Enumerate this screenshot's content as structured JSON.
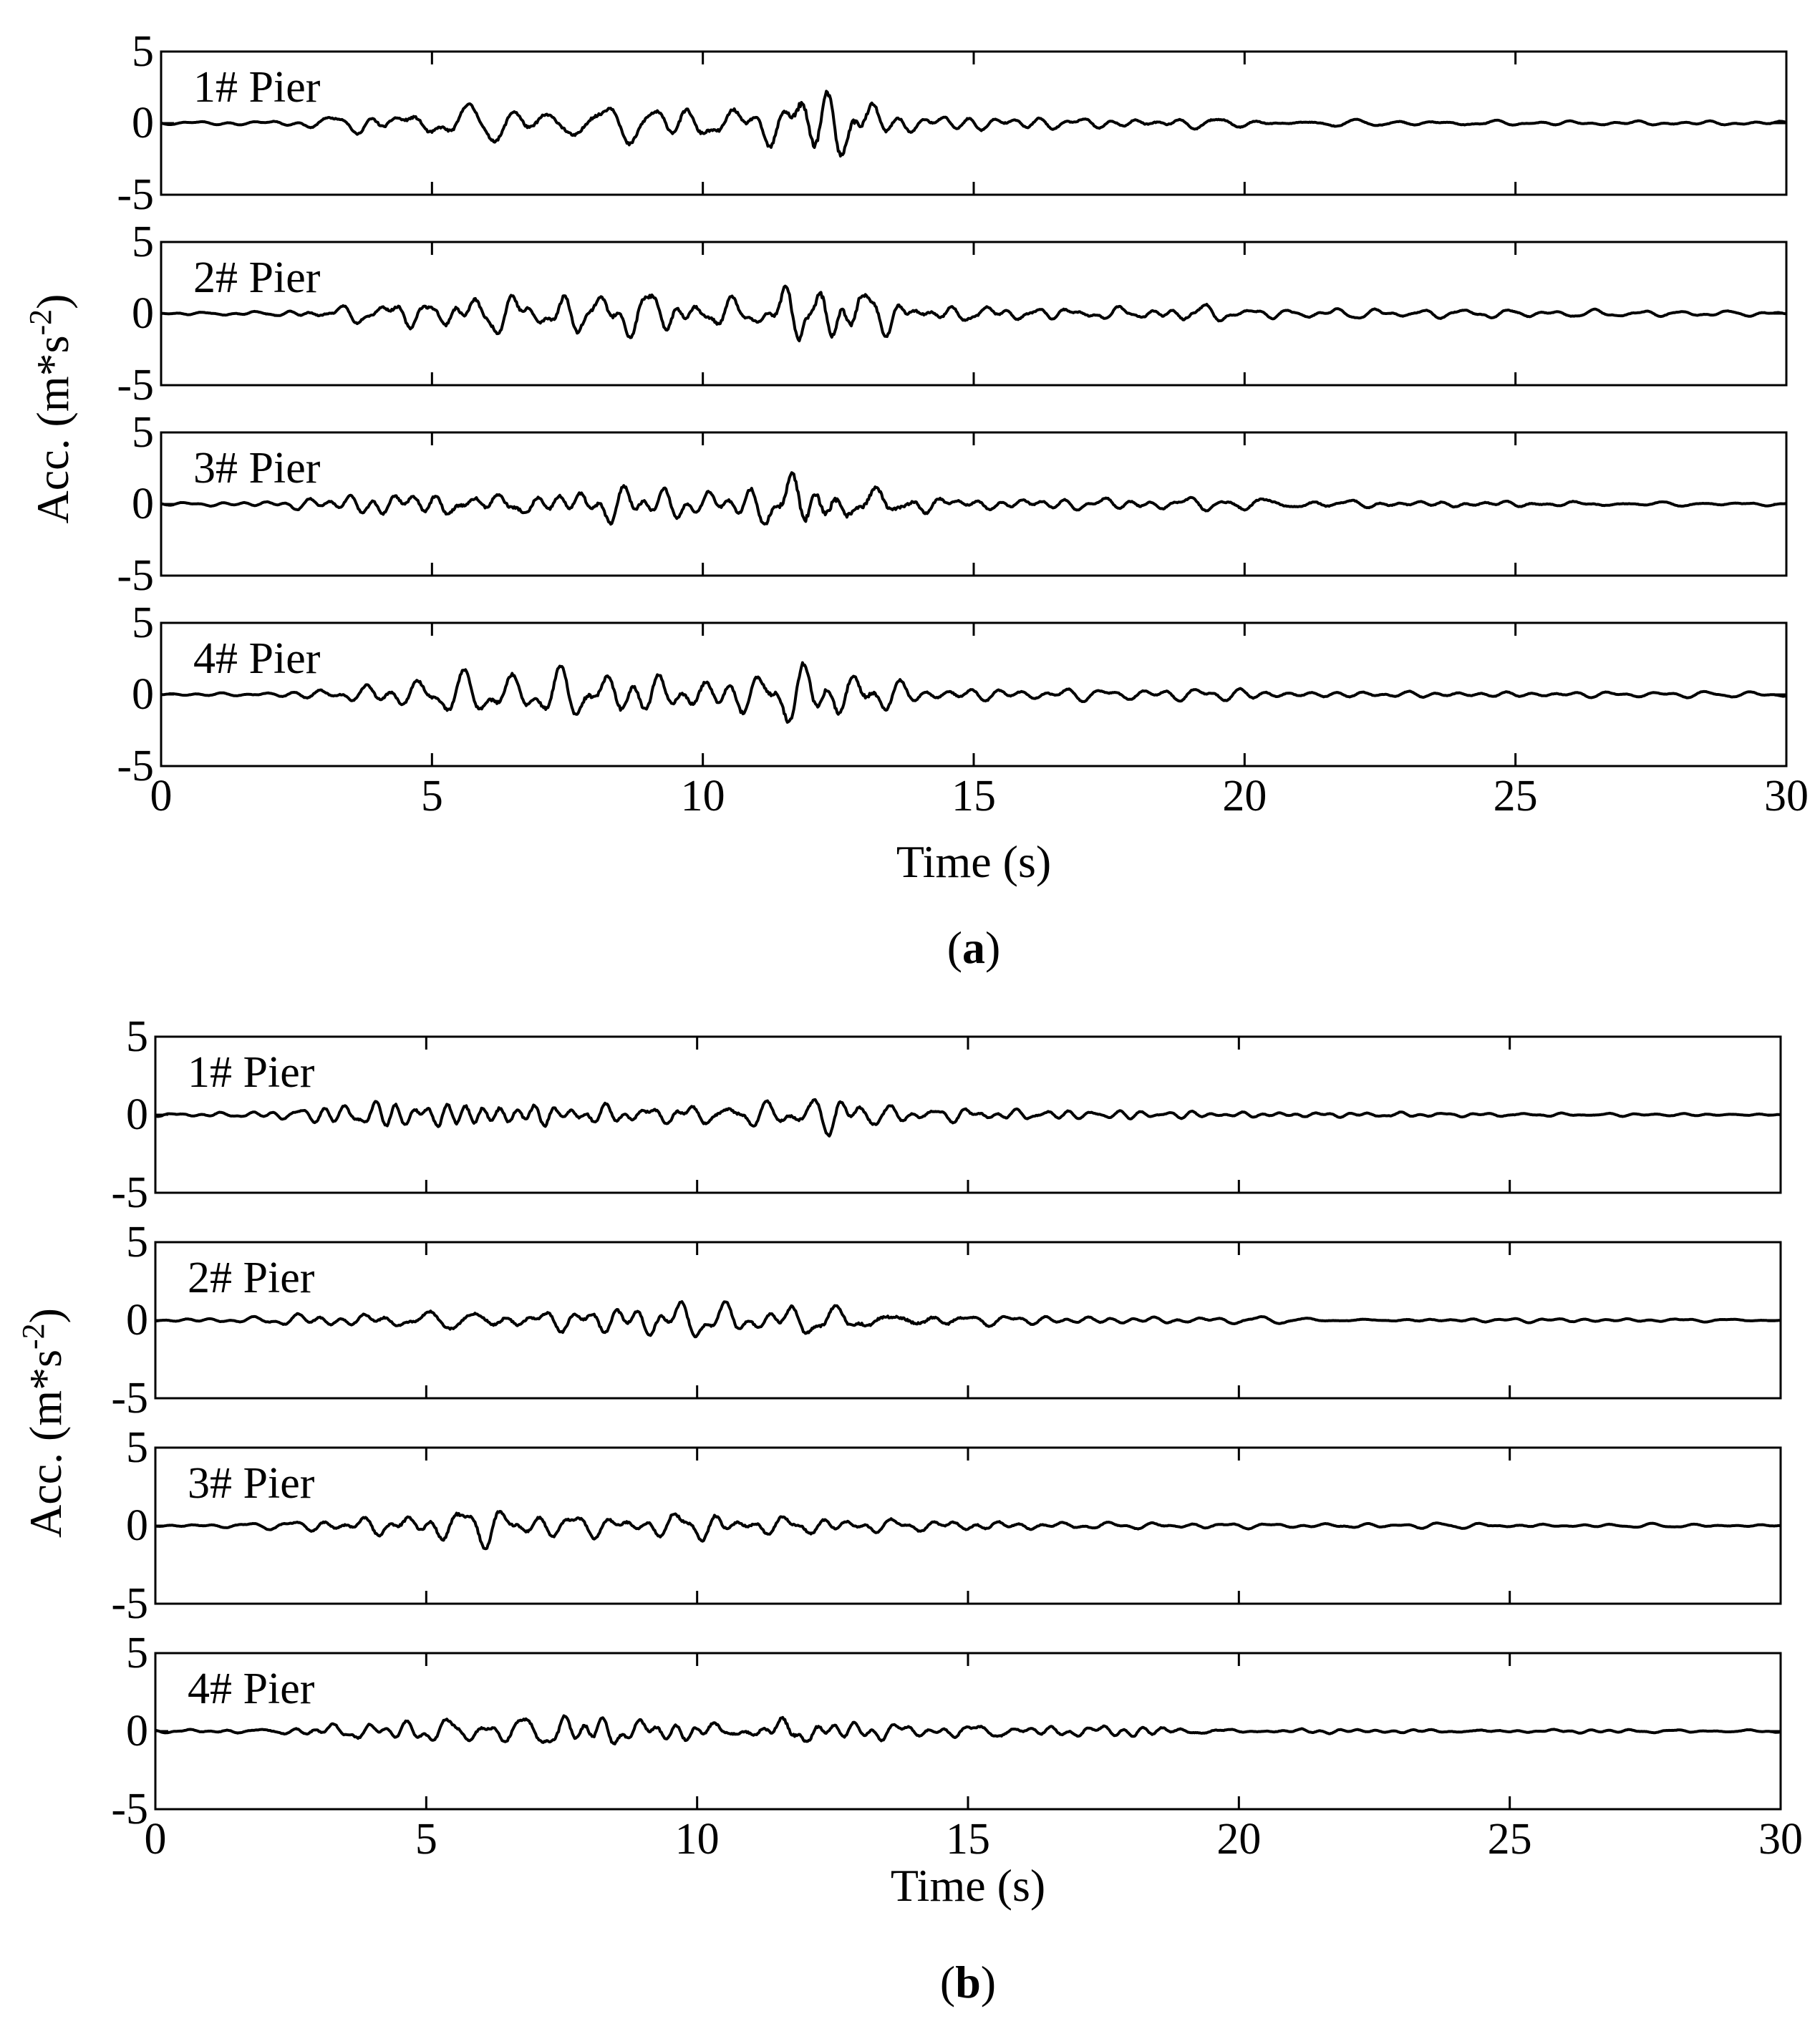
{
  "figure_captions": [
    {
      "open": "(",
      "letter": "a",
      "close": ")"
    },
    {
      "open": "(",
      "letter": "b",
      "close": ")"
    }
  ],
  "line_color": "#000000",
  "chart_data": [
    {
      "type": "line",
      "id": "a",
      "xlabel": "Time (s)",
      "ylabel": "Acc. (m*s",
      "ylabel_sup": "-2",
      "ylabel_close": ")",
      "xlim": [
        0,
        30
      ],
      "ylim": [
        -5,
        5
      ],
      "xticks": [
        0,
        5,
        10,
        15,
        20,
        25,
        30
      ],
      "yticks": [
        5,
        0,
        -5
      ],
      "panels": [
        {
          "label": "1# Pier",
          "envelope": [
            [
              0,
              0.1
            ],
            [
              2,
              0.2
            ],
            [
              3,
              0.4
            ],
            [
              4,
              1.0
            ],
            [
              6,
              1.4
            ],
            [
              8,
              1.5
            ],
            [
              9,
              1.6
            ],
            [
              10,
              1.4
            ],
            [
              11,
              1.3
            ],
            [
              11.8,
              3.2
            ],
            [
              12.3,
              3.2
            ],
            [
              12.8,
              2.8
            ],
            [
              13.5,
              0.9
            ],
            [
              15,
              0.7
            ],
            [
              17,
              0.5
            ],
            [
              18,
              0.6
            ],
            [
              20,
              0.4
            ],
            [
              22,
              0.3
            ],
            [
              25,
              0.2
            ],
            [
              30,
              0.15
            ]
          ],
          "seed": 11
        },
        {
          "label": "2# Pier",
          "envelope": [
            [
              0,
              0.1
            ],
            [
              2,
              0.2
            ],
            [
              3,
              0.5
            ],
            [
              4,
              0.9
            ],
            [
              5,
              1.3
            ],
            [
              6,
              1.4
            ],
            [
              8,
              1.7
            ],
            [
              9,
              1.8
            ],
            [
              10,
              1.3
            ],
            [
              11,
              1.0
            ],
            [
              11.8,
              3.0
            ],
            [
              12.5,
              2.6
            ],
            [
              13,
              2.2
            ],
            [
              14,
              0.8
            ],
            [
              16,
              0.6
            ],
            [
              18,
              0.5
            ],
            [
              19,
              0.8
            ],
            [
              20,
              0.4
            ],
            [
              25,
              0.25
            ],
            [
              30,
              0.15
            ]
          ],
          "seed": 23
        },
        {
          "label": "3# Pier",
          "envelope": [
            [
              0,
              0.1
            ],
            [
              2,
              0.2
            ],
            [
              3,
              0.5
            ],
            [
              4,
              1.1
            ],
            [
              5,
              1.4
            ],
            [
              6,
              1.2
            ],
            [
              8,
              1.5
            ],
            [
              9,
              1.4
            ],
            [
              10,
              1.0
            ],
            [
              11,
              1.4
            ],
            [
              11.8,
              3.0
            ],
            [
              12.5,
              2.6
            ],
            [
              13,
              1.9
            ],
            [
              14,
              1.3
            ],
            [
              15,
              0.6
            ],
            [
              17,
              0.5
            ],
            [
              19,
              0.6
            ],
            [
              20,
              0.7
            ],
            [
              22,
              0.4
            ],
            [
              25,
              0.3
            ],
            [
              30,
              0.15
            ]
          ],
          "seed": 37
        },
        {
          "label": "4# Pier",
          "envelope": [
            [
              0,
              0.1
            ],
            [
              2,
              0.2
            ],
            [
              3,
              0.5
            ],
            [
              4,
              0.9
            ],
            [
              6,
              1.5
            ],
            [
              8,
              1.8
            ],
            [
              9,
              1.9
            ],
            [
              10,
              1.5
            ],
            [
              11,
              1.6
            ],
            [
              11.6,
              2.4
            ],
            [
              12.4,
              2.2
            ],
            [
              13,
              1.8
            ],
            [
              14,
              0.7
            ],
            [
              16,
              0.5
            ],
            [
              18,
              0.4
            ],
            [
              19.5,
              0.6
            ],
            [
              21,
              0.3
            ],
            [
              25,
              0.25
            ],
            [
              30,
              0.15
            ]
          ],
          "seed": 53
        }
      ]
    },
    {
      "type": "line",
      "id": "b",
      "xlabel": "Time (s)",
      "ylabel": "Acc. (m*s",
      "ylabel_sup": "-2",
      "ylabel_close": ")",
      "xlim": [
        0,
        30
      ],
      "ylim": [
        -5,
        5
      ],
      "xticks": [
        0,
        5,
        10,
        15,
        20,
        25,
        30
      ],
      "yticks": [
        5,
        0,
        -5
      ],
      "panels": [
        {
          "label": "1# Pier",
          "envelope": [
            [
              0,
              0.1
            ],
            [
              2,
              0.2
            ],
            [
              3,
              0.5
            ],
            [
              4,
              0.9
            ],
            [
              6,
              1.3
            ],
            [
              8,
              1.0
            ],
            [
              9,
              0.9
            ],
            [
              10,
              1.0
            ],
            [
              11,
              1.0
            ],
            [
              12,
              1.1
            ],
            [
              12.8,
              1.5
            ],
            [
              13.5,
              0.6
            ],
            [
              15,
              0.6
            ],
            [
              17,
              0.3
            ],
            [
              20,
              0.2
            ],
            [
              25,
              0.15
            ],
            [
              30,
              0.1
            ]
          ],
          "seed": 71
        },
        {
          "label": "2# Pier",
          "envelope": [
            [
              0,
              0.1
            ],
            [
              2,
              0.2
            ],
            [
              3,
              0.6
            ],
            [
              4,
              0.7
            ],
            [
              6,
              0.8
            ],
            [
              8,
              1.1
            ],
            [
              9,
              1.2
            ],
            [
              10,
              1.0
            ],
            [
              11,
              0.9
            ],
            [
              12,
              1.2
            ],
            [
              14,
              1.1
            ],
            [
              15,
              0.5
            ],
            [
              17,
              0.3
            ],
            [
              20,
              0.2
            ],
            [
              25,
              0.15
            ],
            [
              30,
              0.1
            ]
          ],
          "seed": 83
        },
        {
          "label": "3# Pier",
          "envelope": [
            [
              0,
              0.1
            ],
            [
              2,
              0.2
            ],
            [
              3,
              0.5
            ],
            [
              4.5,
              1.0
            ],
            [
              6.2,
              1.4
            ],
            [
              7,
              0.9
            ],
            [
              9,
              0.8
            ],
            [
              10,
              1.3
            ],
            [
              11,
              0.7
            ],
            [
              12,
              0.8
            ],
            [
              14,
              0.5
            ],
            [
              15,
              0.6
            ],
            [
              17,
              0.3
            ],
            [
              20,
              0.2
            ],
            [
              25,
              0.15
            ],
            [
              30,
              0.1
            ]
          ],
          "seed": 97
        },
        {
          "label": "4# Pier",
          "envelope": [
            [
              0,
              0.1
            ],
            [
              2,
              0.2
            ],
            [
              3,
              0.5
            ],
            [
              5,
              0.7
            ],
            [
              7,
              1.1
            ],
            [
              8,
              1.2
            ],
            [
              9,
              0.9
            ],
            [
              10,
              0.9
            ],
            [
              11,
              0.8
            ],
            [
              11.7,
              1.4
            ],
            [
              13,
              0.6
            ],
            [
              15,
              0.6
            ],
            [
              16,
              0.5
            ],
            [
              18,
              0.5
            ],
            [
              20,
              0.2
            ],
            [
              25,
              0.15
            ],
            [
              30,
              0.1
            ]
          ],
          "seed": 109
        }
      ]
    }
  ]
}
